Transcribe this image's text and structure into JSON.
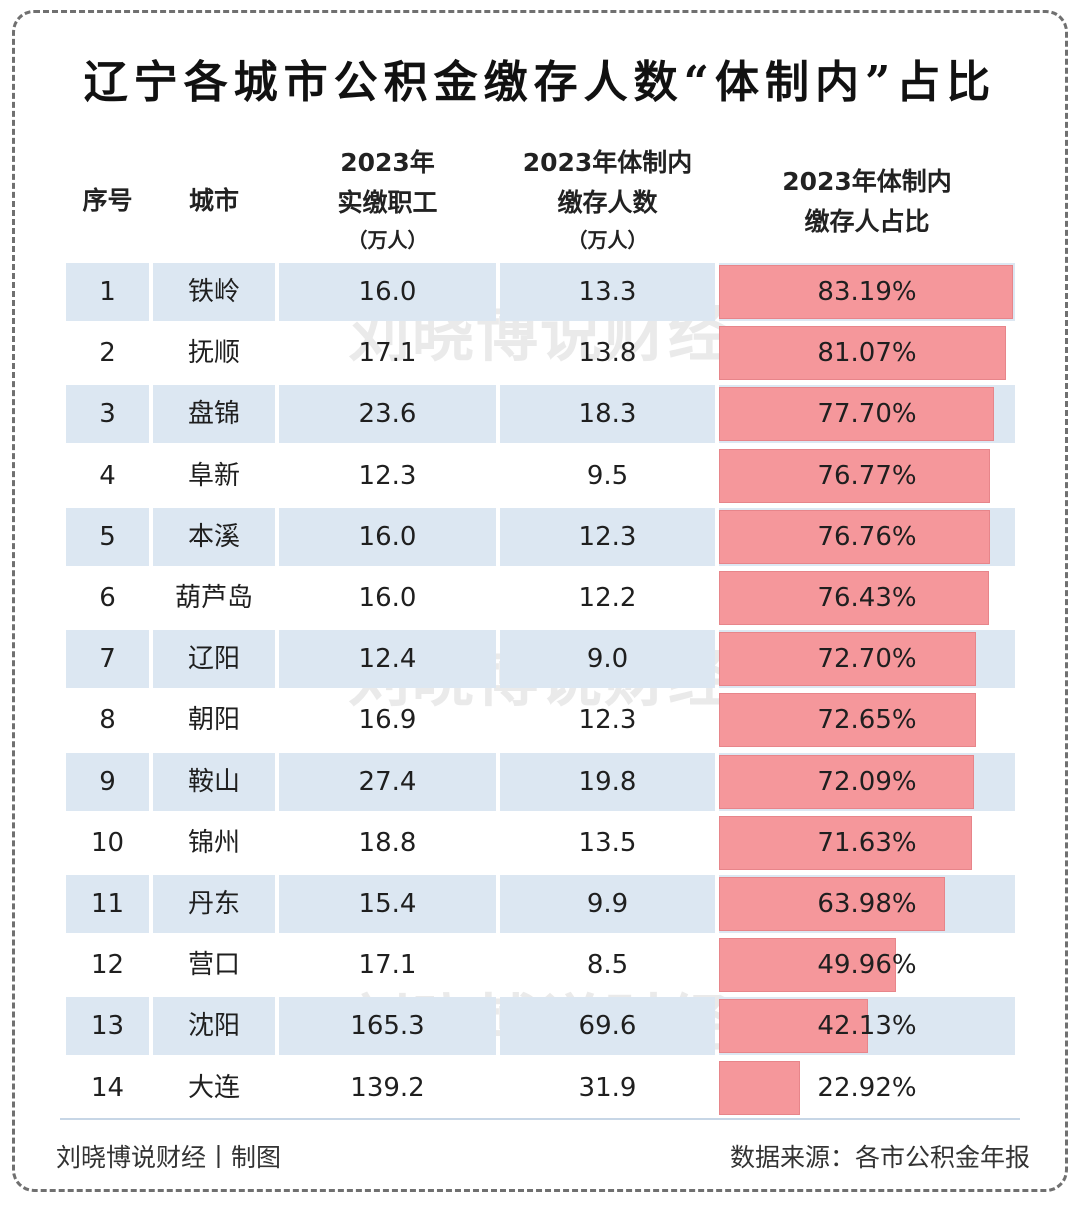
{
  "title": "辽宁各城市公积金缴存人数“体制内”占比",
  "watermark": "刘晓博说财经",
  "headers": {
    "index": "序号",
    "city": "城市",
    "employees_l1": "2023年",
    "employees_l2": "实缴职工",
    "employees_unit": "（万人）",
    "public_l1": "2023年体制内",
    "public_l2": "缴存人数",
    "public_unit": "（万人）",
    "share_l1": "2023年体制内",
    "share_l2": "缴存人占比"
  },
  "chart_data": {
    "type": "table",
    "columns": [
      "序号",
      "城市",
      "2023年实缴职工（万人）",
      "2023年体制内缴存人数（万人）",
      "2023年体制内缴存人占比"
    ],
    "rows": [
      {
        "index": "1",
        "city": "铁岭",
        "employees": "16.0",
        "public": "13.3",
        "share": 83.19,
        "share_label": "83.19%"
      },
      {
        "index": "2",
        "city": "抚顺",
        "employees": "17.1",
        "public": "13.8",
        "share": 81.07,
        "share_label": "81.07%"
      },
      {
        "index": "3",
        "city": "盘锦",
        "employees": "23.6",
        "public": "18.3",
        "share": 77.7,
        "share_label": "77.70%"
      },
      {
        "index": "4",
        "city": "阜新",
        "employees": "12.3",
        "public": "9.5",
        "share": 76.77,
        "share_label": "76.77%"
      },
      {
        "index": "5",
        "city": "本溪",
        "employees": "16.0",
        "public": "12.3",
        "share": 76.76,
        "share_label": "76.76%"
      },
      {
        "index": "6",
        "city": "葫芦岛",
        "employees": "16.0",
        "public": "12.2",
        "share": 76.43,
        "share_label": "76.43%"
      },
      {
        "index": "7",
        "city": "辽阳",
        "employees": "12.4",
        "public": "9.0",
        "share": 72.7,
        "share_label": "72.70%"
      },
      {
        "index": "8",
        "city": "朝阳",
        "employees": "16.9",
        "public": "12.3",
        "share": 72.65,
        "share_label": "72.65%"
      },
      {
        "index": "9",
        "city": "鞍山",
        "employees": "27.4",
        "public": "19.8",
        "share": 72.09,
        "share_label": "72.09%"
      },
      {
        "index": "10",
        "city": "锦州",
        "employees": "18.8",
        "public": "13.5",
        "share": 71.63,
        "share_label": "71.63%"
      },
      {
        "index": "11",
        "city": "丹东",
        "employees": "15.4",
        "public": "9.9",
        "share": 63.98,
        "share_label": "63.98%"
      },
      {
        "index": "12",
        "city": "营口",
        "employees": "17.1",
        "public": "8.5",
        "share": 49.96,
        "share_label": "49.96%"
      },
      {
        "index": "13",
        "city": "沈阳",
        "employees": "165.3",
        "public": "69.6",
        "share": 42.13,
        "share_label": "42.13%"
      },
      {
        "index": "14",
        "city": "大连",
        "employees": "139.2",
        "public": "31.9",
        "share": 22.92,
        "share_label": "22.92%"
      }
    ],
    "bar_max": 83.19,
    "bar_color": "#f5979b",
    "stripe_color": "#dce7f2"
  },
  "footer": {
    "left": "刘晓博说财经丨制图",
    "right": "数据来源：各市公积金年报"
  }
}
